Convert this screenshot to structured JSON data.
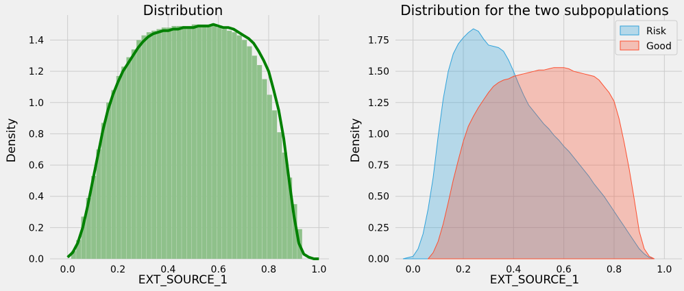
{
  "chart_data": [
    {
      "type": "area",
      "title": "Distribution",
      "xlabel": "EXT_SOURCE_1",
      "ylabel": "Density",
      "xlim": [
        -0.07,
        1.04
      ],
      "ylim": [
        0.0,
        1.56
      ],
      "xticks": [
        "0.0",
        "0.2",
        "0.4",
        "0.6",
        "0.8",
        "1.0"
      ],
      "yticks": [
        "0.0",
        "0.2",
        "0.4",
        "0.6",
        "0.8",
        "1.0",
        "1.2",
        "1.4"
      ],
      "xtick_values": [
        0.0,
        0.2,
        0.4,
        0.6,
        0.8,
        1.0
      ],
      "ytick_values": [
        0.0,
        0.2,
        0.4,
        0.6,
        0.8,
        1.0,
        1.2,
        1.4
      ],
      "grid": true,
      "colors": {
        "hist_fill": "#8fc18b",
        "kde_line": "#008000"
      },
      "histogram": {
        "bin_edges": [
          0.014,
          0.034,
          0.054,
          0.074,
          0.094,
          0.114,
          0.134,
          0.154,
          0.174,
          0.194,
          0.214,
          0.234,
          0.254,
          0.274,
          0.294,
          0.314,
          0.334,
          0.354,
          0.374,
          0.394,
          0.414,
          0.434,
          0.454,
          0.474,
          0.494,
          0.514,
          0.534,
          0.554,
          0.574,
          0.594,
          0.614,
          0.634,
          0.654,
          0.674,
          0.694,
          0.714,
          0.734,
          0.754,
          0.774,
          0.794,
          0.814,
          0.834,
          0.854,
          0.874,
          0.894,
          0.914,
          0.934
        ],
        "densities": [
          0.05,
          0.12,
          0.27,
          0.39,
          0.53,
          0.7,
          0.87,
          1.0,
          1.08,
          1.17,
          1.23,
          1.29,
          1.34,
          1.4,
          1.43,
          1.45,
          1.46,
          1.47,
          1.48,
          1.48,
          1.49,
          1.49,
          1.49,
          1.49,
          1.5,
          1.5,
          1.5,
          1.5,
          1.49,
          1.48,
          1.47,
          1.46,
          1.45,
          1.43,
          1.4,
          1.36,
          1.3,
          1.24,
          1.15,
          1.05,
          0.95,
          0.81,
          0.68,
          0.52,
          0.35,
          0.19
        ]
      },
      "kde": {
        "x": [
          0.0,
          0.02,
          0.04,
          0.06,
          0.08,
          0.1,
          0.12,
          0.14,
          0.16,
          0.18,
          0.2,
          0.22,
          0.24,
          0.26,
          0.28,
          0.3,
          0.32,
          0.34,
          0.36,
          0.38,
          0.4,
          0.42,
          0.44,
          0.46,
          0.48,
          0.5,
          0.52,
          0.54,
          0.56,
          0.58,
          0.6,
          0.62,
          0.64,
          0.66,
          0.68,
          0.7,
          0.72,
          0.74,
          0.76,
          0.78,
          0.8,
          0.82,
          0.84,
          0.86,
          0.88,
          0.9,
          0.92,
          0.94,
          0.96,
          0.98,
          1.0
        ],
        "y": [
          0.01,
          0.04,
          0.1,
          0.2,
          0.34,
          0.5,
          0.66,
          0.82,
          0.95,
          1.05,
          1.13,
          1.2,
          1.25,
          1.3,
          1.35,
          1.39,
          1.42,
          1.44,
          1.45,
          1.46,
          1.46,
          1.47,
          1.47,
          1.48,
          1.48,
          1.48,
          1.49,
          1.49,
          1.49,
          1.5,
          1.49,
          1.48,
          1.48,
          1.47,
          1.45,
          1.43,
          1.41,
          1.38,
          1.33,
          1.27,
          1.2,
          1.08,
          0.95,
          0.77,
          0.52,
          0.28,
          0.1,
          0.03,
          0.01,
          0.0,
          0.0
        ]
      }
    },
    {
      "type": "area",
      "title": "Distribution for the two subpopulations",
      "xlabel": "EXT_SOURCE_1",
      "ylabel": "Density",
      "xlim": [
        -0.07,
        1.07
      ],
      "ylim": [
        0.0,
        1.95
      ],
      "xticks": [
        "0.0",
        "0.2",
        "0.4",
        "0.6",
        "0.8",
        "1.0"
      ],
      "yticks": [
        "0.00",
        "0.25",
        "0.50",
        "0.75",
        "1.00",
        "1.25",
        "1.50",
        "1.75"
      ],
      "xtick_values": [
        0.0,
        0.2,
        0.4,
        0.6,
        0.8,
        1.0
      ],
      "ytick_values": [
        0.0,
        0.25,
        0.5,
        0.75,
        1.0,
        1.25,
        1.5,
        1.75
      ],
      "grid": true,
      "legend": {
        "position": "top-right"
      },
      "series": [
        {
          "name": "Risk",
          "color": "#30a2da",
          "x": [
            -0.04,
            0.0,
            0.02,
            0.04,
            0.06,
            0.08,
            0.1,
            0.12,
            0.14,
            0.16,
            0.18,
            0.2,
            0.22,
            0.24,
            0.26,
            0.28,
            0.3,
            0.32,
            0.34,
            0.36,
            0.38,
            0.4,
            0.42,
            0.44,
            0.46,
            0.48,
            0.5,
            0.52,
            0.54,
            0.56,
            0.58,
            0.6,
            0.62,
            0.64,
            0.66,
            0.68,
            0.7,
            0.72,
            0.74,
            0.76,
            0.78,
            0.8,
            0.82,
            0.84,
            0.86,
            0.88,
            0.9,
            0.92,
            0.94,
            0.96
          ],
          "y": [
            0.0,
            0.02,
            0.08,
            0.2,
            0.4,
            0.65,
            0.98,
            1.28,
            1.5,
            1.64,
            1.72,
            1.77,
            1.81,
            1.84,
            1.82,
            1.76,
            1.71,
            1.7,
            1.69,
            1.66,
            1.59,
            1.5,
            1.4,
            1.31,
            1.23,
            1.18,
            1.13,
            1.08,
            1.04,
            0.99,
            0.95,
            0.9,
            0.86,
            0.81,
            0.76,
            0.71,
            0.66,
            0.6,
            0.55,
            0.5,
            0.44,
            0.38,
            0.32,
            0.26,
            0.2,
            0.14,
            0.08,
            0.04,
            0.01,
            0.0
          ]
        },
        {
          "name": "Good",
          "color": "#fc4f30",
          "x": [
            0.06,
            0.08,
            0.1,
            0.12,
            0.14,
            0.16,
            0.18,
            0.2,
            0.22,
            0.24,
            0.26,
            0.28,
            0.3,
            0.32,
            0.34,
            0.36,
            0.38,
            0.4,
            0.42,
            0.44,
            0.46,
            0.48,
            0.5,
            0.52,
            0.54,
            0.56,
            0.58,
            0.6,
            0.62,
            0.64,
            0.66,
            0.68,
            0.7,
            0.72,
            0.74,
            0.76,
            0.78,
            0.8,
            0.82,
            0.84,
            0.86,
            0.88,
            0.9,
            0.92,
            0.94,
            0.96
          ],
          "y": [
            0.0,
            0.05,
            0.14,
            0.28,
            0.45,
            0.63,
            0.79,
            0.94,
            1.06,
            1.14,
            1.21,
            1.27,
            1.33,
            1.38,
            1.41,
            1.43,
            1.44,
            1.46,
            1.47,
            1.48,
            1.49,
            1.5,
            1.51,
            1.51,
            1.52,
            1.53,
            1.53,
            1.53,
            1.52,
            1.5,
            1.49,
            1.48,
            1.47,
            1.46,
            1.43,
            1.38,
            1.33,
            1.26,
            1.12,
            0.93,
            0.72,
            0.48,
            0.22,
            0.08,
            0.02,
            0.0
          ]
        }
      ]
    }
  ]
}
